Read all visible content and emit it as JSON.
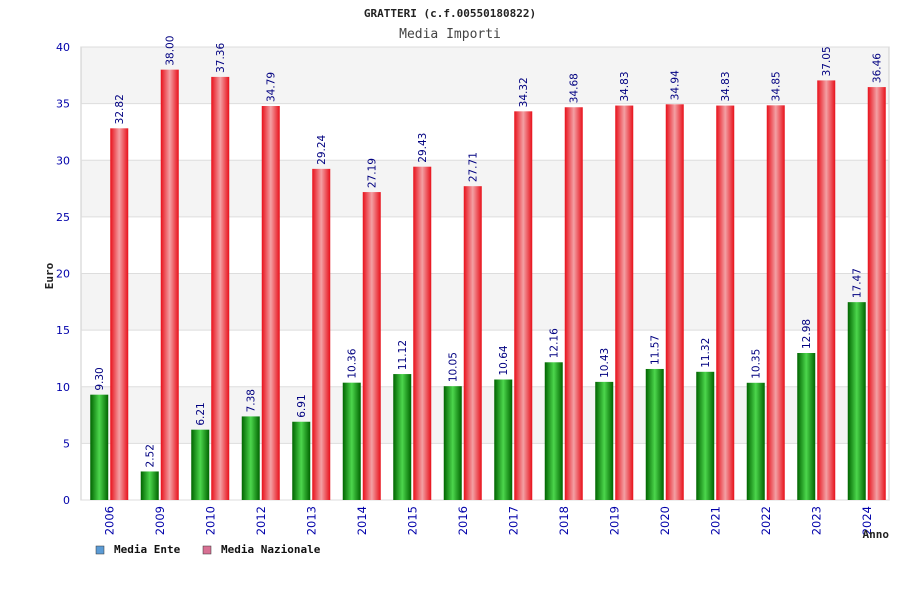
{
  "chart_data": {
    "type": "bar",
    "title": "GRATTERI (c.f.00550180822)",
    "subtitle": "Media Importi",
    "xlabel": "Anno",
    "ylabel": "Euro",
    "ylim": [
      0,
      40
    ],
    "yticks": [
      0,
      5,
      10,
      15,
      20,
      25,
      30,
      35,
      40
    ],
    "grid": true,
    "legend_position": "bottom-left",
    "categories": [
      "2006",
      "2009",
      "2010",
      "2012",
      "2013",
      "2014",
      "2015",
      "2016",
      "2017",
      "2018",
      "2019",
      "2020",
      "2021",
      "2022",
      "2023",
      "2024"
    ],
    "series": [
      {
        "name": "Media Ente",
        "color": "#00a000",
        "legend_color": "#5b9bd5",
        "values": [
          9.3,
          2.52,
          6.21,
          7.38,
          6.91,
          10.36,
          11.12,
          10.05,
          10.64,
          12.16,
          10.43,
          11.57,
          11.32,
          10.35,
          12.98,
          17.47
        ],
        "labels": [
          "9.30",
          "2.52",
          "6.21",
          "7.38",
          "6.91",
          "10.36",
          "11.12",
          "10.05",
          "10.64",
          "12.16",
          "10.43",
          "11.57",
          "11.32",
          "10.35",
          "12.98",
          "17.47"
        ]
      },
      {
        "name": "Media Nazionale",
        "color": "#e8101a",
        "legend_color": "#d87093",
        "values": [
          32.82,
          38.0,
          37.36,
          34.79,
          29.24,
          27.19,
          29.43,
          27.71,
          34.32,
          34.68,
          34.83,
          34.94,
          34.83,
          34.85,
          37.05,
          36.46
        ],
        "labels": [
          "32.82",
          "38.00",
          "37.36",
          "34.79",
          "29.24",
          "27.19",
          "29.43",
          "27.71",
          "34.32",
          "34.68",
          "34.83",
          "34.94",
          "34.83",
          "34.85",
          "37.05",
          "36.46"
        ]
      }
    ]
  },
  "colors": {
    "band_shade": "#f4f4f4",
    "grid": "#dddddd",
    "tick_text": "#0000aa",
    "label_text": "#000080",
    "title_text": "#222222"
  }
}
